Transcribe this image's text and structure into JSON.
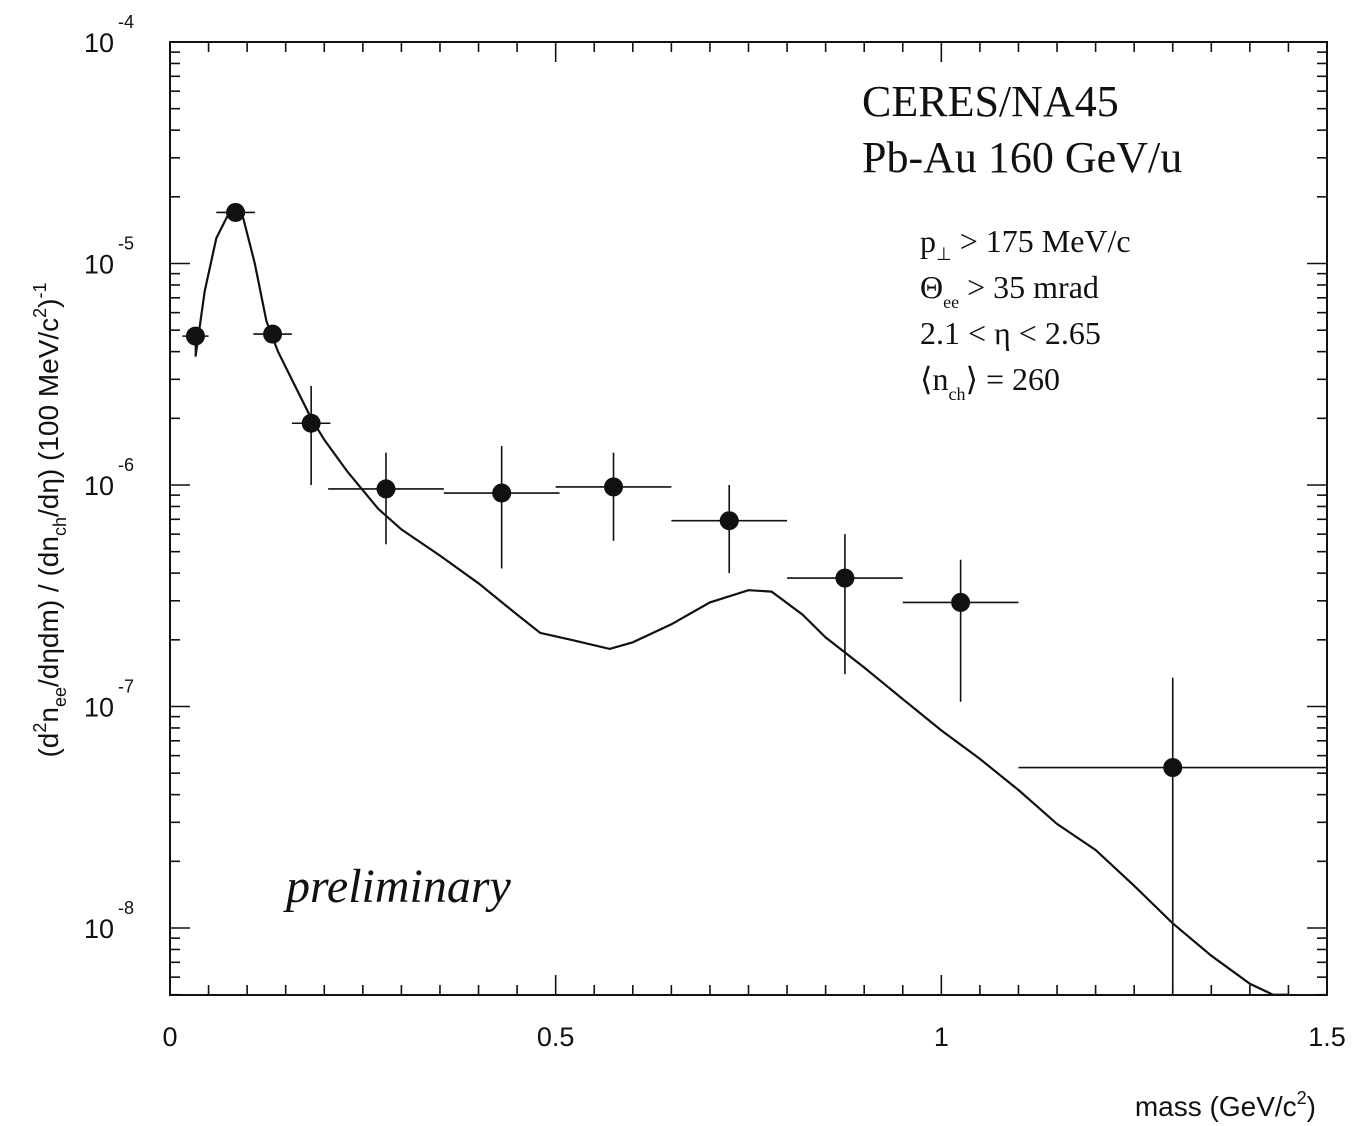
{
  "chart_data": {
    "type": "scatter",
    "title": "",
    "xlabel": "mass (GeV/c²)",
    "ylabel": "(d²n_ee/dηdm) / (dn_ch/dη) (100 MeV/c²)⁻¹",
    "ylabel_parts": {
      "p1": "(d",
      "p2": "2",
      "p3": "n",
      "p4": "ee",
      "p5": "/dηdm) / (dn",
      "p6": "ch",
      "p7": "/dη) (100 MeV/c",
      "p8": "2",
      "p9": ")",
      "p10": "-1"
    },
    "xlabel_parts": {
      "main": "mass (GeV/c",
      "sup": "2",
      "end": ")"
    },
    "xlim": [
      0,
      1.5
    ],
    "ylim": [
      5e-09,
      0.0001
    ],
    "yscale": "log",
    "x_ticks": [
      {
        "value": 0,
        "label": "0"
      },
      {
        "value": 0.5,
        "label": "0.5"
      },
      {
        "value": 1.0,
        "label": "1"
      },
      {
        "value": 1.5,
        "label": "1.5"
      }
    ],
    "y_ticks": [
      {
        "value": 0.0001,
        "base": "10",
        "exp": "-4"
      },
      {
        "value": 1e-05,
        "base": "10",
        "exp": "-5"
      },
      {
        "value": 1e-06,
        "base": "10",
        "exp": "-6"
      },
      {
        "value": 1e-07,
        "base": "10",
        "exp": "-7"
      },
      {
        "value": 1e-08,
        "base": "10",
        "exp": "-8"
      }
    ],
    "grid": false,
    "series": [
      {
        "type": "scatter",
        "color": "#111111",
        "points": [
          {
            "x": 0.033,
            "y": 4.7e-06,
            "xerr": 0.017,
            "ylow": 3.9e-06,
            "yhigh": 4.9e-06
          },
          {
            "x": 0.085,
            "y": 1.7e-05,
            "xerr": 0.025,
            "ylow": 1.66e-05,
            "yhigh": 1.74e-05
          },
          {
            "x": 0.133,
            "y": 4.8e-06,
            "xerr": 0.025,
            "ylow": 4.6e-06,
            "yhigh": 5.1e-06
          },
          {
            "x": 0.183,
            "y": 1.9e-06,
            "xerr": 0.025,
            "ylow": 1e-06,
            "yhigh": 2.8e-06
          },
          {
            "x": 0.28,
            "y": 9.6e-07,
            "xerr": 0.075,
            "ylow": 5.4e-07,
            "yhigh": 1.4e-06
          },
          {
            "x": 0.43,
            "y": 9.2e-07,
            "xerr": 0.075,
            "ylow": 4.2e-07,
            "yhigh": 1.5e-06
          },
          {
            "x": 0.575,
            "y": 9.8e-07,
            "xerr": 0.075,
            "ylow": 5.6e-07,
            "yhigh": 1.4e-06
          },
          {
            "x": 0.725,
            "y": 6.9e-07,
            "xerr": 0.075,
            "ylow": 4e-07,
            "yhigh": 1e-06
          },
          {
            "x": 0.875,
            "y": 3.8e-07,
            "xerr": 0.075,
            "ylow": 1.4e-07,
            "yhigh": 6e-07
          },
          {
            "x": 1.025,
            "y": 2.95e-07,
            "xerr": 0.075,
            "ylow": 1.05e-07,
            "yhigh": 4.6e-07
          },
          {
            "x": 1.3,
            "y": 5.3e-08,
            "xerr": 0.2,
            "ylow": 5e-09,
            "yhigh": 1.35e-07
          }
        ]
      },
      {
        "type": "line",
        "color": "#111111",
        "points": [
          [
            0.033,
            3.8e-06
          ],
          [
            0.045,
            7.5e-06
          ],
          [
            0.06,
            1.3e-05
          ],
          [
            0.075,
            1.65e-05
          ],
          [
            0.085,
            1.72e-05
          ],
          [
            0.095,
            1.6e-05
          ],
          [
            0.11,
            1e-05
          ],
          [
            0.125,
            5.5e-06
          ],
          [
            0.14,
            4e-06
          ],
          [
            0.16,
            2.9e-06
          ],
          [
            0.183,
            2e-06
          ],
          [
            0.2,
            1.6e-06
          ],
          [
            0.23,
            1.15e-06
          ],
          [
            0.27,
            7.8e-07
          ],
          [
            0.3,
            6.3e-07
          ],
          [
            0.35,
            4.8e-07
          ],
          [
            0.4,
            3.6e-07
          ],
          [
            0.45,
            2.6e-07
          ],
          [
            0.48,
            2.15e-07
          ],
          [
            0.52,
            2e-07
          ],
          [
            0.57,
            1.82e-07
          ],
          [
            0.6,
            1.95e-07
          ],
          [
            0.65,
            2.35e-07
          ],
          [
            0.7,
            2.95e-07
          ],
          [
            0.75,
            3.35e-07
          ],
          [
            0.78,
            3.3e-07
          ],
          [
            0.82,
            2.6e-07
          ],
          [
            0.85,
            2.05e-07
          ],
          [
            0.9,
            1.5e-07
          ],
          [
            0.95,
            1.08e-07
          ],
          [
            1.0,
            7.8e-08
          ],
          [
            1.05,
            5.8e-08
          ],
          [
            1.1,
            4.2e-08
          ],
          [
            1.15,
            2.95e-08
          ],
          [
            1.2,
            2.25e-08
          ],
          [
            1.25,
            1.55e-08
          ],
          [
            1.3,
            1.05e-08
          ],
          [
            1.35,
            7.5e-09
          ],
          [
            1.4,
            5.6e-09
          ],
          [
            1.43,
            5e-09
          ],
          [
            1.45,
            5e-09
          ]
        ]
      }
    ],
    "annotations": {
      "experiment": "CERES/NA45",
      "system": "Pb-Au 160 GeV/u",
      "cut_pt": {
        "sym": "p",
        "sub": "⊥",
        "rest": "> 175 MeV/c"
      },
      "cut_theta": {
        "sym": "Θ",
        "sub": "ee",
        "rest": "> 35 mrad"
      },
      "cut_eta": "2.1 < η < 2.65",
      "nch": {
        "open": "⟨n",
        "sub": "ch",
        "rest": "⟩ = 260"
      },
      "preliminary": "preliminary"
    }
  }
}
